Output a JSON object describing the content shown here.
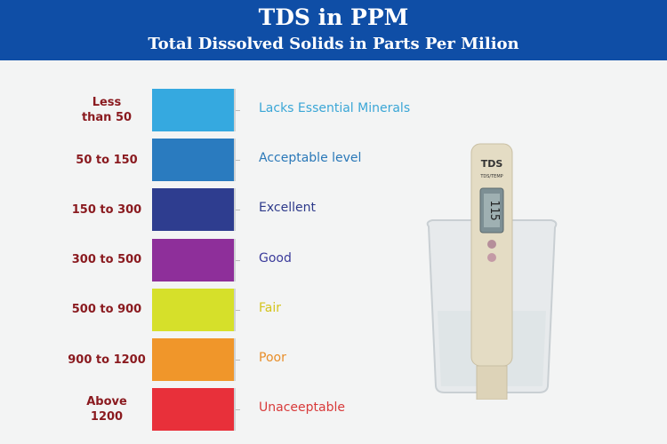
{
  "header": {
    "title": "TDS in PPM",
    "subtitle": "Total Dissolved Solids in Parts Per Milion"
  },
  "levels": [
    {
      "range": "Less\nthan 50",
      "description": "Lacks Essential Minerals",
      "color": "#35a9e0",
      "text_color": "#3aa6d6"
    },
    {
      "range": "50 to 150",
      "description": "Acceptable level",
      "color": "#2a7bbf",
      "text_color": "#2a78b8"
    },
    {
      "range": "150 to 300",
      "description": "Excellent",
      "color": "#2e3d8f",
      "text_color": "#2d3a8a"
    },
    {
      "range": "300 to 500",
      "description": "Good",
      "color": "#8e2f9a",
      "text_color": "#3a3a9a"
    },
    {
      "range": "500 to 900",
      "description": "Fair",
      "color": "#d6e02a",
      "text_color": "#d4c41c"
    },
    {
      "range": "900 to 1200",
      "description": "Poor",
      "color": "#f0962a",
      "text_color": "#e88e2a"
    },
    {
      "range": "Above\n1200",
      "description": "Unaceeptable",
      "color": "#e8303a",
      "text_color": "#d83a3a"
    }
  ],
  "meter": {
    "brand": "TDS",
    "mode": "TDS/TEMP",
    "reading": "115"
  }
}
